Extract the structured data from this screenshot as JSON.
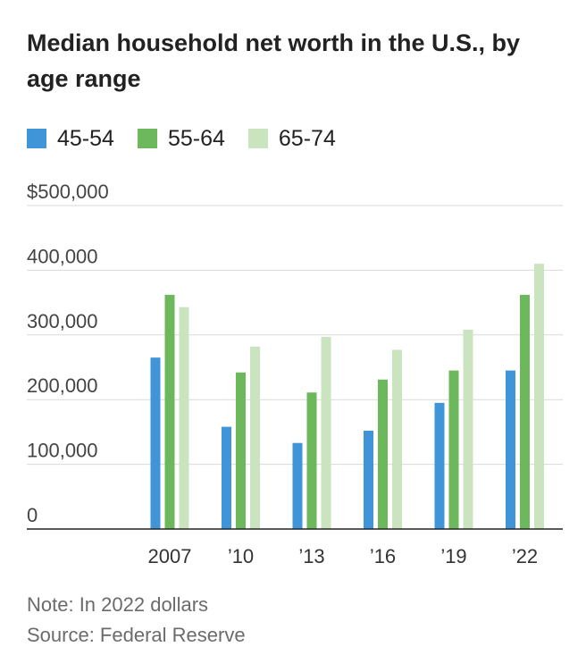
{
  "chart_data": {
    "type": "bar",
    "title": "Median household net worth in the U.S., by age range",
    "categories": [
      "2007",
      "’10",
      "’13",
      "’16",
      "’19",
      "’22"
    ],
    "series": [
      {
        "name": "45-54",
        "color": "#3f95d8",
        "values": [
          265000,
          158000,
          133000,
          152000,
          195000,
          245000
        ]
      },
      {
        "name": "55-64",
        "color": "#6db85c",
        "values": [
          362000,
          242000,
          211000,
          231000,
          245000,
          362000
        ]
      },
      {
        "name": "65-74",
        "color": "#c9e4bf",
        "values": [
          343000,
          282000,
          297000,
          277000,
          308000,
          410000
        ]
      }
    ],
    "y_ticks": [
      {
        "value": 0,
        "label": "0"
      },
      {
        "value": 100000,
        "label": "100,000"
      },
      {
        "value": 200000,
        "label": "200,000"
      },
      {
        "value": 300000,
        "label": "300,000"
      },
      {
        "value": 400000,
        "label": "400,000"
      },
      {
        "value": 500000,
        "label": "$500,000"
      }
    ],
    "ylim": [
      0,
      500000
    ],
    "xlabel": "",
    "ylabel": "",
    "grid": true,
    "legend_position": "top-left",
    "note": "Note: In 2022 dollars",
    "source": "Source: Federal Reserve"
  },
  "colors": {
    "grid": "#d9d9d9",
    "axis": "#222222",
    "tick_text": "#444444"
  }
}
